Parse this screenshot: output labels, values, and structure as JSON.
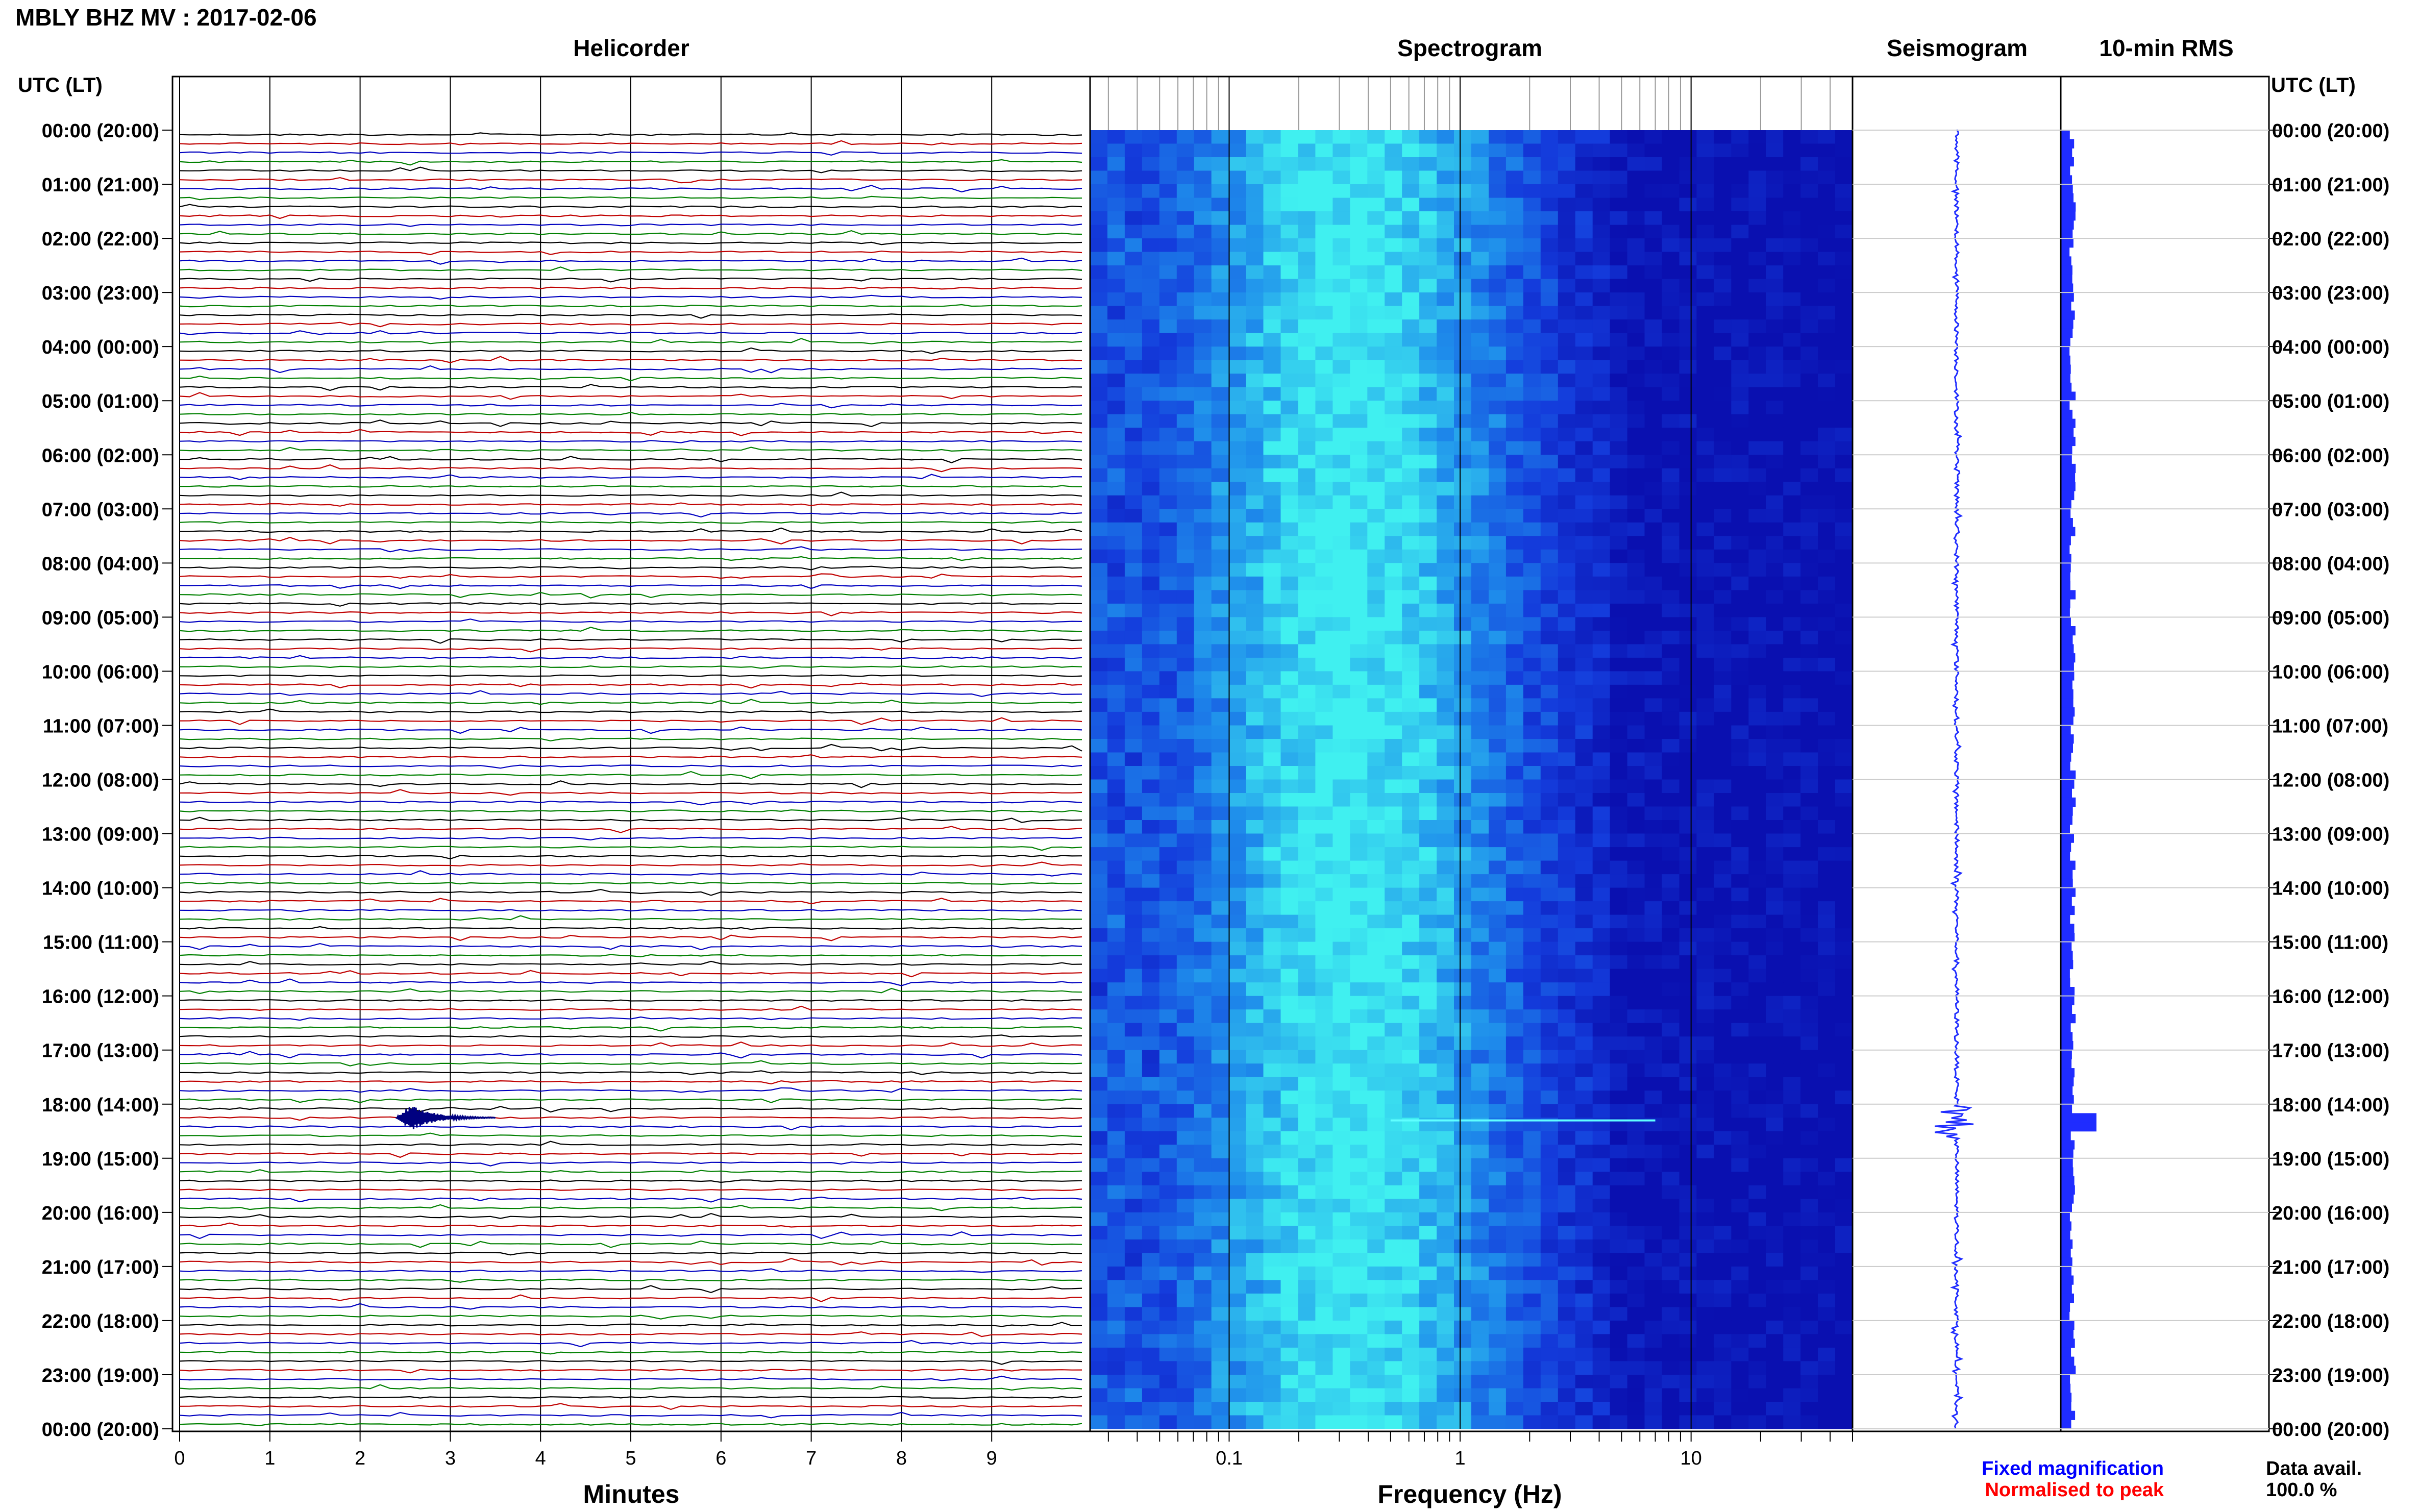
{
  "title": "MBLY BHZ MV : 2017-02-06",
  "panel_titles": {
    "helicorder": "Helicorder",
    "spectrogram": "Spectrogram",
    "seismogram": "Seismogram",
    "rms": "10-min RMS"
  },
  "axis_header_left": "UTC (LT)",
  "axis_header_right": "UTC (LT)",
  "xlabels": {
    "helicorder": "Minutes",
    "spectrogram": "Frequency (Hz)"
  },
  "footer": {
    "fixed_magnification": "Fixed magnification",
    "normalised": "Normalised to peak",
    "data_avail_label": "Data avail.",
    "data_avail_value": "100.0 %"
  },
  "colors": {
    "trace_cycle": [
      "#000000",
      "#c00000",
      "#0000c0",
      "#008000"
    ],
    "seismogram": "#1f2cff",
    "fixed_magnification": "#0000ff",
    "normalised": "#ff0000",
    "spectrogram_low": "#0a10b0",
    "spectrogram_high": "#40f0f0"
  },
  "chart_data": [
    {
      "type": "line",
      "panel": "helicorder",
      "title": "Helicorder",
      "xlabel": "Minutes",
      "xlim": [
        0,
        10
      ],
      "x_ticks": [
        0,
        1,
        2,
        3,
        4,
        5,
        6,
        7,
        8,
        9
      ],
      "rows": 144,
      "row_minutes": 10,
      "y_tick_labels": [
        "00:00 (20:00)",
        "01:00 (21:00)",
        "02:00 (22:00)",
        "03:00 (23:00)",
        "04:00 (00:00)",
        "05:00 (01:00)",
        "06:00 (02:00)",
        "07:00 (03:00)",
        "08:00 (04:00)",
        "09:00 (05:00)",
        "10:00 (06:00)",
        "11:00 (07:00)",
        "12:00 (08:00)",
        "13:00 (09:00)",
        "14:00 (10:00)",
        "15:00 (11:00)",
        "16:00 (12:00)",
        "17:00 (13:00)",
        "18:00 (14:00)",
        "19:00 (15:00)",
        "20:00 (16:00)",
        "21:00 (17:00)",
        "22:00 (18:00)",
        "23:00 (19:00)",
        "00:00 (20:00)"
      ],
      "events": [
        {
          "utc_hours": 18.33,
          "minute": 2.6,
          "relative_amplitude": 1.0
        }
      ]
    },
    {
      "type": "heatmap",
      "panel": "spectrogram",
      "title": "Spectrogram",
      "xlabel": "Frequency (Hz)",
      "x_scale": "log",
      "xlim": [
        0.025,
        50
      ],
      "x_tick_labels": [
        "0.1",
        "1",
        "10"
      ],
      "x_ticks": [
        0.1,
        1,
        10
      ],
      "ylim_hours": [
        0,
        24
      ],
      "peak_band_hz": [
        0.15,
        0.6
      ],
      "spectral_line": {
        "utc_hours": 18.3,
        "freq_range_hz": [
          0.5,
          7
        ]
      }
    },
    {
      "type": "line",
      "panel": "seismogram",
      "title": "Seismogram",
      "ylim_hours": [
        0,
        24
      ],
      "spike": {
        "utc_hours": 18.33
      }
    },
    {
      "type": "bar",
      "panel": "rms",
      "title": "10-min RMS",
      "ylim_hours": [
        0,
        24
      ],
      "bins": 144,
      "peak": {
        "utc_hours": 18.33,
        "relative_value": 1.0
      },
      "typical_relative_value": 0.35
    }
  ]
}
